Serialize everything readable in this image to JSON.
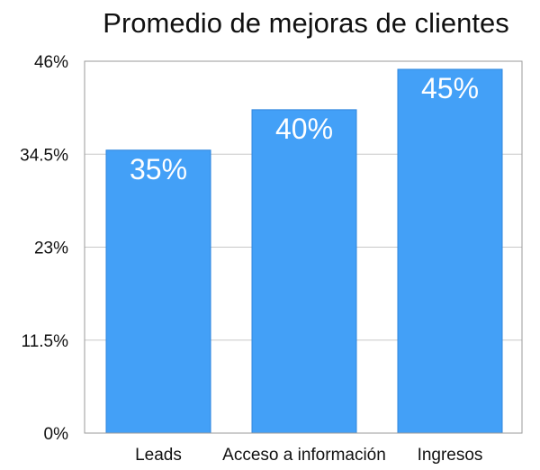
{
  "chart_data": {
    "type": "bar",
    "title": "Promedio de mejoras de clientes",
    "xlabel": "",
    "ylabel": "",
    "categories": [
      "Leads",
      "Acceso a información",
      "Ingresos"
    ],
    "values": [
      35,
      40,
      45
    ],
    "data_labels": [
      "35%",
      "40%",
      "45%"
    ],
    "ylim": [
      0,
      46
    ],
    "yticks": [
      0,
      11.5,
      23,
      34.5,
      46
    ],
    "ytick_labels": [
      "0%",
      "11.5%",
      "23%",
      "34.5%",
      "46%"
    ],
    "grid": true,
    "legend": "none",
    "colors": {
      "bar": "#43a0f7",
      "bar_edge": "#2f86dd",
      "grid": "#c8c8c8",
      "axis": "#9a9a9a"
    }
  }
}
